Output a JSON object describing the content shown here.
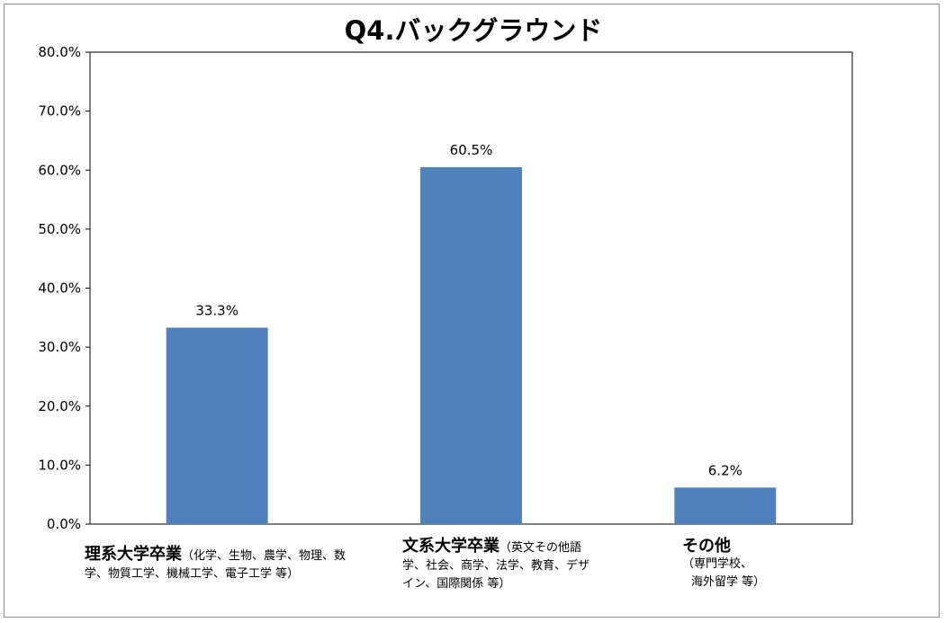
{
  "chart_data": {
    "type": "bar",
    "title": "Q4.バックグラウンド",
    "categories": [
      {
        "main": "理系大学卒業",
        "sub": [
          "（化学、生物、農学、物理、数",
          "学、物質工学、機械工学、電子工学 等）"
        ]
      },
      {
        "main": "文系大学卒業",
        "sub": [
          "（英文その他語",
          "学、社会、商学、法学、教育、デザ",
          "イン、国際関係 等）"
        ]
      },
      {
        "main": "その他",
        "sub": [
          "（専門学校、",
          "海外留学 等）"
        ]
      }
    ],
    "values": [
      33.3,
      60.5,
      6.2
    ],
    "data_labels": [
      "33.3%",
      "60.5%",
      "6.2%"
    ],
    "yticks": [
      "0.0%",
      "10.0%",
      "20.0%",
      "30.0%",
      "40.0%",
      "50.0%",
      "60.0%",
      "70.0%",
      "80.0%"
    ],
    "ylim": [
      0,
      80
    ],
    "grid": false,
    "bar_color": "#4f81bd"
  }
}
